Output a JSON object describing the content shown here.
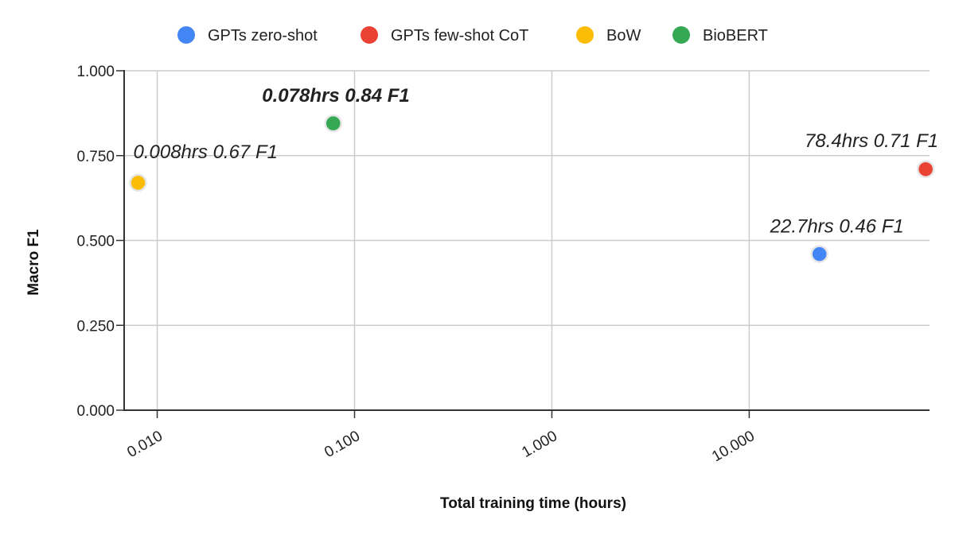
{
  "chart_data": {
    "type": "scatter",
    "x_scale": "log",
    "xlabel": "Total training time (hours)",
    "ylabel": "Macro F1",
    "xlim": [
      0.0068,
      82
    ],
    "ylim": [
      0,
      1
    ],
    "x_ticks": [
      {
        "value": 0.01,
        "label": "0.010"
      },
      {
        "value": 0.1,
        "label": "0.100"
      },
      {
        "value": 1,
        "label": "1.000"
      },
      {
        "value": 10,
        "label": "10.000"
      }
    ],
    "y_ticks": [
      {
        "value": 0,
        "label": "0.000"
      },
      {
        "value": 0.25,
        "label": "0.250"
      },
      {
        "value": 0.5,
        "label": "0.500"
      },
      {
        "value": 0.75,
        "label": "0.750"
      },
      {
        "value": 1,
        "label": "1.000"
      }
    ],
    "grid": true,
    "legend_position": "top",
    "series": [
      {
        "name": "GPTs zero-shot",
        "color": "#4285F4",
        "points": [
          {
            "x": 22.7,
            "y": 0.46
          }
        ]
      },
      {
        "name": "GPTs few-shot CoT",
        "color": "#EA4335",
        "points": [
          {
            "x": 78.4,
            "y": 0.71
          }
        ]
      },
      {
        "name": "BoW",
        "color": "#FBBC04",
        "points": [
          {
            "x": 0.008,
            "y": 0.67
          }
        ]
      },
      {
        "name": "BioBERT",
        "color": "#34A853",
        "points": [
          {
            "x": 0.078,
            "y": 0.845
          }
        ]
      }
    ],
    "annotations": [
      {
        "text": "0.008hrs 0.67 F1",
        "x": 0.008,
        "y": 0.67,
        "bold": false,
        "anchor": "above-right"
      },
      {
        "text": "0.078hrs 0.84 F1",
        "x": 0.078,
        "y": 0.845,
        "bold": true,
        "anchor": "above-left"
      },
      {
        "text": "78.4hrs 0.71 F1",
        "x": 78.4,
        "y": 0.71,
        "bold": false,
        "anchor": "above-left"
      },
      {
        "text": "22.7hrs 0.46 F1",
        "x": 22.7,
        "y": 0.46,
        "bold": false,
        "anchor": "above-center"
      }
    ]
  }
}
